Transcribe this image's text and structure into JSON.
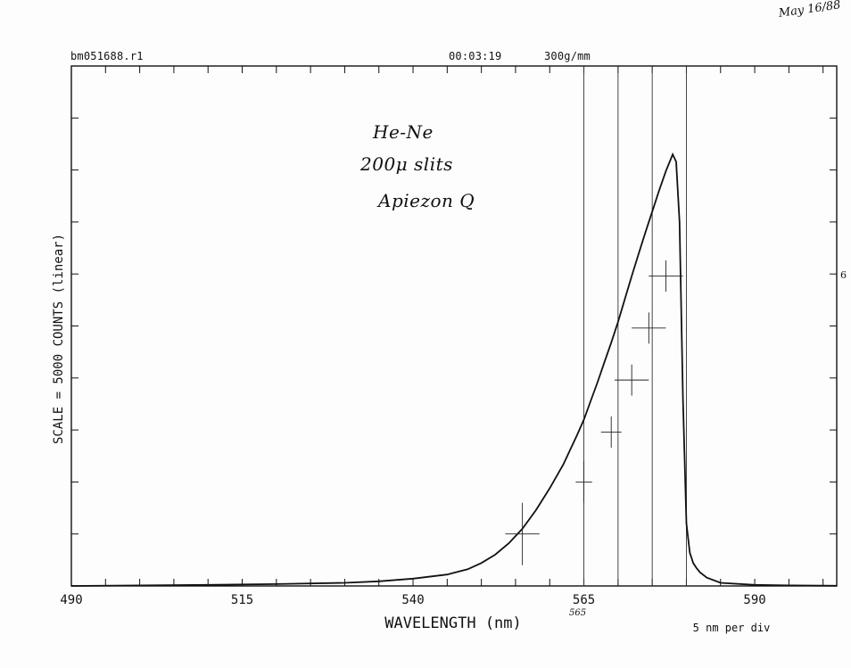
{
  "header": {
    "filename": "bm051688.r1",
    "time": "00:03:19",
    "grating": "300g/mm",
    "date_note": "May 16/88"
  },
  "annotations": {
    "line1": "He-Ne",
    "line2": "200μ slits",
    "line3": "Apiezon Q",
    "edge_mark": "6",
    "handwritten_tick": "565"
  },
  "chart_data": {
    "type": "line",
    "title": "",
    "xlabel": "WAVELENGTH (nm)",
    "ylabel": "SCALE = 5000 COUNTS (linear)",
    "x_tick_labels": [
      "490",
      "515",
      "540",
      "565",
      "590"
    ],
    "x_note": "5 nm per div",
    "xlim": [
      490,
      602
    ],
    "ylim": [
      0,
      50000
    ],
    "grid": false,
    "series": [
      {
        "x": [
          490,
          500,
          510,
          520,
          530,
          535,
          540,
          545,
          548,
          550,
          552,
          554,
          556,
          558,
          560,
          562,
          563,
          564,
          565,
          566,
          567,
          568,
          569,
          570,
          571,
          572,
          573,
          574,
          575,
          576,
          577,
          578,
          578.5,
          579,
          579.5,
          580,
          580.5,
          581,
          581.5,
          582,
          583,
          585,
          590,
          595,
          602
        ],
        "y": [
          0,
          50,
          100,
          180,
          300,
          450,
          700,
          1100,
          1600,
          2200,
          3000,
          4100,
          5500,
          7300,
          9400,
          11700,
          13100,
          14500,
          16000,
          17800,
          19600,
          21500,
          23400,
          25400,
          27600,
          29800,
          31900,
          34000,
          36000,
          38000,
          39900,
          41500,
          40800,
          35000,
          18000,
          6000,
          3200,
          2200,
          1700,
          1300,
          800,
          300,
          100,
          50,
          20
        ]
      }
    ],
    "vertical_lines_x": [
      565,
      570,
      575,
      580
    ],
    "error_bars": [
      {
        "x": 556,
        "y": 5000,
        "dx": 2.5,
        "dy": 3000
      },
      {
        "x": 565,
        "y": 10000,
        "dx": 1.2,
        "dy": 2000
      },
      {
        "x": 569,
        "y": 14800,
        "dx": 1.5,
        "dy": 1500
      },
      {
        "x": 572,
        "y": 19800,
        "dx": 2.5,
        "dy": 1500
      },
      {
        "x": 574.5,
        "y": 24800,
        "dx": 2.5,
        "dy": 1500
      },
      {
        "x": 577,
        "y": 29800,
        "dx": 2.5,
        "dy": 1500
      }
    ]
  }
}
